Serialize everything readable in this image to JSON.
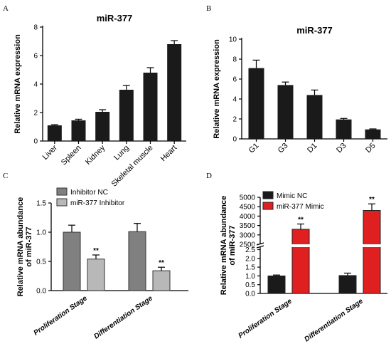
{
  "colors": {
    "black": "#1a1a1a",
    "dark_gray": "#808080",
    "light_gray": "#b8b8b8",
    "red": "#e02020"
  },
  "chart_data": [
    {
      "panel": "A",
      "type": "bar",
      "title": "miR-377",
      "ylabel": "Relative mRNA expression",
      "xlabel": "",
      "ylim": [
        0,
        8
      ],
      "y_ticks": [
        "0",
        "2",
        "4",
        "6",
        "8"
      ],
      "categories": [
        "Liver",
        "Spleen",
        "Kidney",
        "Lung",
        "Skeletal muscle",
        "Heart"
      ],
      "values": [
        1.1,
        1.45,
        2.05,
        3.6,
        4.8,
        6.8
      ],
      "errors": [
        0.05,
        0.08,
        0.15,
        0.3,
        0.35,
        0.25
      ],
      "bar_color": "#1a1a1a"
    },
    {
      "panel": "B",
      "type": "bar",
      "title": "miR-377",
      "ylabel": "Relative mRNA expression",
      "xlabel": "",
      "ylim": [
        0,
        10
      ],
      "y_ticks": [
        "0",
        "2",
        "4",
        "6",
        "8",
        "10"
      ],
      "categories": [
        "G1",
        "G3",
        "D1",
        "D3",
        "D5"
      ],
      "values": [
        7.1,
        5.4,
        4.4,
        1.95,
        0.95
      ],
      "errors": [
        0.8,
        0.3,
        0.5,
        0.1,
        0.05
      ],
      "bar_color": "#1a1a1a"
    },
    {
      "panel": "C",
      "type": "bar",
      "title": "",
      "ylabel": "Relative mRNA abundance of miR-377",
      "xlabel": "",
      "ylim": [
        0,
        1.5
      ],
      "y_ticks": [
        "0.0",
        "0.5",
        "1.0",
        "1.5"
      ],
      "categories": [
        "Proliferation Stage",
        "Differentiation Stage"
      ],
      "legend_position": "top-left",
      "series": [
        {
          "name": "Inhibitor NC",
          "values": [
            1.0,
            1.01
          ],
          "errors": [
            0.12,
            0.14
          ],
          "color": "#808080",
          "stars": [
            "",
            ""
          ]
        },
        {
          "name": "miR-377 Inhibitor",
          "values": [
            0.54,
            0.34
          ],
          "errors": [
            0.07,
            0.06
          ],
          "color": "#b8b8b8",
          "stars": [
            "**",
            "**"
          ]
        }
      ]
    },
    {
      "panel": "D",
      "type": "bar",
      "title": "",
      "ylabel": "Relative mRNA abundance of miR-377",
      "xlabel": "",
      "axis_break": [
        2.6,
        2500
      ],
      "y_ticks": [
        "0.0",
        "0.5",
        "1.0",
        "1.5",
        "2.0",
        "2.5",
        "2500",
        "3000",
        "3500",
        "4000",
        "4500",
        "5000"
      ],
      "categories": [
        "Proliferation Stage",
        "Differentiation Stage"
      ],
      "legend_position": "top-left",
      "series": [
        {
          "name": "Mimic NC",
          "values": [
            1.0,
            1.02
          ],
          "errors": [
            0.05,
            0.14
          ],
          "color": "#1a1a1a",
          "stars": [
            "",
            ""
          ]
        },
        {
          "name": "miR-377 Mimic",
          "values": [
            3300,
            4300
          ],
          "errors": [
            280,
            350
          ],
          "color": "#e02020",
          "stars": [
            "**",
            "**"
          ]
        }
      ]
    }
  ]
}
